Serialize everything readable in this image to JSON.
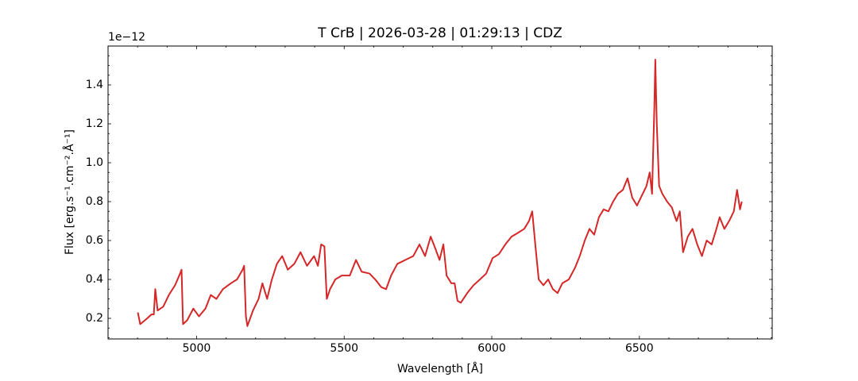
{
  "chart_data": {
    "type": "line",
    "title": "T CrB | 2026-03-28 | 01:29:13 | CDZ",
    "x_label": "Wavelength [Å]",
    "y_label": "Flux [erg.s⁻¹.cm⁻².Å⁻¹]",
    "y_offset_label": "1e−12",
    "color": "#d62728",
    "x": [
      4801,
      4809,
      4833,
      4847,
      4855,
      4860,
      4868,
      4887,
      4906,
      4927,
      4944,
      4949,
      4954,
      4968,
      4989,
      5008,
      5030,
      5048,
      5067,
      5089,
      5116,
      5137,
      5156,
      5161,
      5167,
      5172,
      5191,
      5210,
      5223,
      5239,
      5255,
      5272,
      5290,
      5309,
      5331,
      5352,
      5374,
      5398,
      5411,
      5422,
      5433,
      5441,
      5452,
      5470,
      5492,
      5519,
      5540,
      5559,
      5586,
      5605,
      5626,
      5642,
      5659,
      5680,
      5707,
      5734,
      5755,
      5774,
      5793,
      5806,
      5823,
      5836,
      5847,
      5863,
      5874,
      5884,
      5895,
      5917,
      5938,
      5960,
      5981,
      6003,
      6024,
      6046,
      6067,
      6089,
      6110,
      6126,
      6137,
      6148,
      6159,
      6175,
      6191,
      6207,
      6223,
      6239,
      6261,
      6282,
      6298,
      6315,
      6331,
      6347,
      6363,
      6379,
      6395,
      6411,
      6427,
      6444,
      6460,
      6476,
      6492,
      6508,
      6524,
      6535,
      6543,
      6551,
      6554,
      6559,
      6567,
      6578,
      6594,
      6610,
      6626,
      6637,
      6648,
      6664,
      6680,
      6696,
      6712,
      6728,
      6745,
      6761,
      6772,
      6788,
      6804,
      6820,
      6831,
      6841,
      6847
    ],
    "values": [
      0.23,
      0.17,
      0.2,
      0.22,
      0.22,
      0.35,
      0.24,
      0.26,
      0.32,
      0.37,
      0.43,
      0.45,
      0.17,
      0.19,
      0.25,
      0.21,
      0.25,
      0.32,
      0.3,
      0.35,
      0.38,
      0.4,
      0.45,
      0.47,
      0.21,
      0.16,
      0.24,
      0.3,
      0.38,
      0.3,
      0.4,
      0.48,
      0.52,
      0.45,
      0.48,
      0.54,
      0.47,
      0.52,
      0.47,
      0.58,
      0.57,
      0.3,
      0.35,
      0.4,
      0.42,
      0.42,
      0.5,
      0.44,
      0.43,
      0.4,
      0.36,
      0.35,
      0.42,
      0.48,
      0.5,
      0.52,
      0.58,
      0.52,
      0.62,
      0.57,
      0.5,
      0.58,
      0.42,
      0.38,
      0.38,
      0.29,
      0.28,
      0.33,
      0.37,
      0.4,
      0.43,
      0.51,
      0.53,
      0.58,
      0.62,
      0.64,
      0.66,
      0.7,
      0.75,
      0.57,
      0.4,
      0.37,
      0.4,
      0.35,
      0.33,
      0.38,
      0.4,
      0.46,
      0.52,
      0.6,
      0.66,
      0.63,
      0.72,
      0.76,
      0.75,
      0.8,
      0.84,
      0.86,
      0.92,
      0.82,
      0.78,
      0.83,
      0.88,
      0.95,
      0.84,
      1.3,
      1.53,
      1.2,
      0.88,
      0.84,
      0.8,
      0.77,
      0.7,
      0.75,
      0.54,
      0.62,
      0.66,
      0.58,
      0.52,
      0.6,
      0.58,
      0.66,
      0.72,
      0.66,
      0.7,
      0.75,
      0.86,
      0.76,
      0.8
    ],
    "xlim": [
      4700,
      6950
    ],
    "ylim": [
      0.094,
      1.6
    ],
    "xticks": [
      5000,
      5500,
      6000,
      6500
    ],
    "yticks": [
      0.2,
      0.4,
      0.6,
      0.8,
      {
        "value": 1,
        "label": "1.0"
      },
      1.2,
      1.4
    ],
    "grid": false
  }
}
